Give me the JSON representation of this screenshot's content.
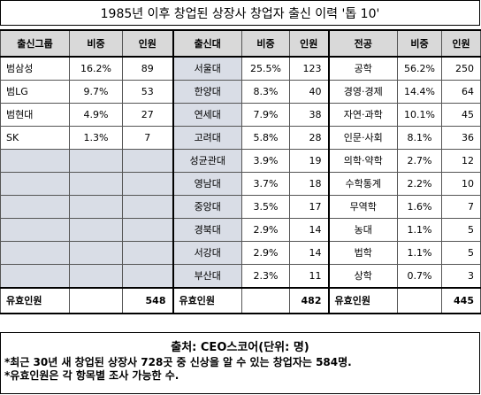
{
  "title": "1985년 이후 창업된 상장사 창업자 출신 이력 '톱 10'",
  "headers": [
    "출신그룹",
    "비중",
    "인원",
    "출신대",
    "비중",
    "인원",
    "전공",
    "비중",
    "인원"
  ],
  "groups": [
    {
      "name": "범삼성",
      "share": "16.2%",
      "count": "89"
    },
    {
      "name": "범LG",
      "share": "9.7%",
      "count": "53"
    },
    {
      "name": "범현대",
      "share": "4.9%",
      "count": "27"
    },
    {
      "name": "SK",
      "share": "1.3%",
      "count": "7"
    }
  ],
  "universities": [
    {
      "name": "서울대",
      "share": "25.5%",
      "count": "123"
    },
    {
      "name": "한양대",
      "share": "8.3%",
      "count": "40"
    },
    {
      "name": "연세대",
      "share": "7.9%",
      "count": "38"
    },
    {
      "name": "고려대",
      "share": "5.8%",
      "count": "28"
    },
    {
      "name": "성균관대",
      "share": "3.9%",
      "count": "19"
    },
    {
      "name": "영남대",
      "share": "3.7%",
      "count": "18"
    },
    {
      "name": "중앙대",
      "share": "3.5%",
      "count": "17"
    },
    {
      "name": "경북대",
      "share": "2.9%",
      "count": "14"
    },
    {
      "name": "서강대",
      "share": "2.9%",
      "count": "14"
    },
    {
      "name": "부산대",
      "share": "2.3%",
      "count": "11"
    }
  ],
  "majors": [
    {
      "name": "공학",
      "share": "56.2%",
      "count": "250"
    },
    {
      "name": "경영·경제",
      "share": "14.4%",
      "count": "64"
    },
    {
      "name": "자연·과학",
      "share": "10.1%",
      "count": "45"
    },
    {
      "name": "인문·사회",
      "share": "8.1%",
      "count": "36"
    },
    {
      "name": "의학·약학",
      "share": "2.7%",
      "count": "12"
    },
    {
      "name": "수학통계",
      "share": "2.2%",
      "count": "10"
    },
    {
      "name": "무역학",
      "share": "1.6%",
      "count": "7"
    },
    {
      "name": "농대",
      "share": "1.1%",
      "count": "5"
    },
    {
      "name": "법학",
      "share": "1.1%",
      "count": "5"
    },
    {
      "name": "상학",
      "share": "0.7%",
      "count": "3"
    }
  ],
  "footer": {
    "label": "유효인원",
    "groups_total": "548",
    "universities_total": "482",
    "majors_total": "445"
  },
  "source": {
    "title": "출처: CEO스코어(단위: 명)",
    "notes": [
      "*최근 30년 새 창업된 상장사 728곳 중 신상을 알 수 있는 창업자는 584명.",
      "*유효인원은 각 항목별 조사 가능한 수."
    ]
  },
  "colors": {
    "header_bg": "#d9d9d9",
    "section_bg": "#d9dde6"
  }
}
